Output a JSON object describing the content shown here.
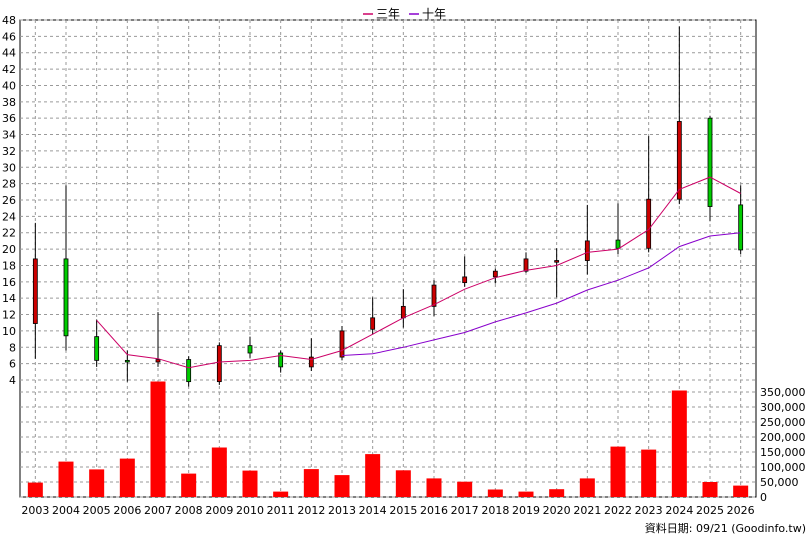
{
  "legend": {
    "items": [
      {
        "label": "三年",
        "color": "#cc0066"
      },
      {
        "label": "十年",
        "color": "#8800cc"
      }
    ]
  },
  "footer": {
    "text": "資料日期: 09/21 (Goodinfo.tw)"
  },
  "colors": {
    "up": "#cc0000",
    "down": "#00cc00",
    "volume": "#ff0000",
    "grid": "#9a9a9a"
  },
  "chart_data": [
    {
      "type": "candlestick",
      "title": "",
      "grid": true,
      "legend_position": "top-center",
      "years": [
        "2003",
        "2004",
        "2005",
        "2006",
        "2007",
        "2008",
        "2009",
        "2010",
        "2011",
        "2012",
        "2013",
        "2014",
        "2015",
        "2016",
        "2017",
        "2018",
        "2019",
        "2020",
        "2021",
        "2022",
        "2023",
        "2024",
        "2025",
        "2026"
      ],
      "ylim": [
        4,
        48
      ],
      "y_ticks": [
        4,
        6,
        8,
        10,
        12,
        14,
        16,
        18,
        20,
        22,
        24,
        26,
        28,
        30,
        32,
        34,
        36,
        38,
        40,
        42,
        44,
        46,
        48
      ],
      "candles": [
        {
          "year": "2003",
          "open": 10.9,
          "high": 23.2,
          "low": 6.6,
          "close": 18.8
        },
        {
          "year": "2004",
          "open": 18.8,
          "high": 27.8,
          "low": 7.6,
          "close": 9.4
        },
        {
          "year": "2005",
          "open": 9.3,
          "high": 11.4,
          "low": 5.6,
          "close": 6.4
        },
        {
          "year": "2006",
          "open": 6.4,
          "high": 7.6,
          "low": 3.8,
          "close": 6.2
        },
        {
          "year": "2007",
          "open": 6.2,
          "high": 12.3,
          "low": 5.6,
          "close": 6.5
        },
        {
          "year": "2008",
          "open": 6.5,
          "high": 6.9,
          "low": 3.2,
          "close": 3.8
        },
        {
          "year": "2009",
          "open": 3.8,
          "high": 8.6,
          "low": 3.4,
          "close": 8.2
        },
        {
          "year": "2010",
          "open": 8.2,
          "high": 9.3,
          "low": 6.7,
          "close": 7.3
        },
        {
          "year": "2011",
          "open": 7.3,
          "high": 7.6,
          "low": 4.9,
          "close": 5.6
        },
        {
          "year": "2012",
          "open": 5.6,
          "high": 9.1,
          "low": 5.1,
          "close": 6.8
        },
        {
          "year": "2013",
          "open": 6.8,
          "high": 10.6,
          "low": 6.4,
          "close": 10.0
        },
        {
          "year": "2014",
          "open": 10.2,
          "high": 14.1,
          "low": 9.6,
          "close": 11.6
        },
        {
          "year": "2015",
          "open": 11.6,
          "high": 15.1,
          "low": 10.4,
          "close": 13.0
        },
        {
          "year": "2016",
          "open": 13.0,
          "high": 16.2,
          "low": 11.8,
          "close": 15.6
        },
        {
          "year": "2017",
          "open": 15.9,
          "high": 19.1,
          "low": 15.4,
          "close": 16.6
        },
        {
          "year": "2018",
          "open": 16.6,
          "high": 17.6,
          "low": 15.8,
          "close": 17.3
        },
        {
          "year": "2019",
          "open": 17.3,
          "high": 19.6,
          "low": 17.1,
          "close": 18.8
        },
        {
          "year": "2020",
          "open": 18.4,
          "high": 20.1,
          "low": 14.1,
          "close": 18.6
        },
        {
          "year": "2021",
          "open": 18.6,
          "high": 25.4,
          "low": 16.9,
          "close": 21.0
        },
        {
          "year": "2022",
          "open": 21.1,
          "high": 25.6,
          "low": 19.4,
          "close": 20.1
        },
        {
          "year": "2023",
          "open": 20.1,
          "high": 33.8,
          "low": 19.6,
          "close": 26.1
        },
        {
          "year": "2024",
          "open": 26.1,
          "high": 47.2,
          "low": 25.5,
          "close": 35.6
        },
        {
          "year": "2025",
          "open": 36.0,
          "high": 36.3,
          "low": 23.4,
          "close": 25.2
        },
        {
          "year": "2026",
          "open": 25.4,
          "high": 27.8,
          "low": 19.4,
          "close": 19.9
        }
      ],
      "series": [
        {
          "name": "三年",
          "years": [
            "2005",
            "2006",
            "2007",
            "2008",
            "2009",
            "2010",
            "2011",
            "2012",
            "2013",
            "2014",
            "2015",
            "2016",
            "2017",
            "2018",
            "2019",
            "2020",
            "2021",
            "2022",
            "2023",
            "2024",
            "2025",
            "2026"
          ],
          "values": [
            11.3,
            7.1,
            6.6,
            5.5,
            6.2,
            6.4,
            7.0,
            6.5,
            7.6,
            9.6,
            11.6,
            13.2,
            15.1,
            16.5,
            17.4,
            18.0,
            19.6,
            20.0,
            22.4,
            27.3,
            28.8,
            26.8
          ]
        },
        {
          "name": "十年",
          "years": [
            "2013",
            "2014",
            "2015",
            "2016",
            "2017",
            "2018",
            "2019",
            "2020",
            "2021",
            "2022",
            "2023",
            "2024",
            "2025",
            "2026"
          ],
          "values": [
            7.0,
            7.2,
            8.0,
            8.9,
            9.8,
            11.1,
            12.2,
            13.4,
            15.0,
            16.2,
            17.7,
            20.3,
            21.6,
            22.0
          ]
        }
      ]
    },
    {
      "type": "bar",
      "categories": [
        "2003",
        "2004",
        "2005",
        "2006",
        "2007",
        "2008",
        "2009",
        "2010",
        "2011",
        "2012",
        "2013",
        "2014",
        "2015",
        "2016",
        "2017",
        "2018",
        "2019",
        "2020",
        "2021",
        "2022",
        "2023",
        "2024",
        "2025",
        "2026"
      ],
      "values": [
        48000,
        118000,
        92000,
        128000,
        385000,
        78000,
        165000,
        88000,
        18000,
        93000,
        73000,
        143000,
        89000,
        62000,
        51000,
        25000,
        18000,
        26000,
        62000,
        168000,
        158000,
        355000,
        50000,
        38000
      ],
      "ylim": [
        0,
        390000
      ],
      "y_ticks": [
        "0",
        "50,000",
        "100,000",
        "150,000",
        "200,000",
        "250,000",
        "300,000",
        "350,000"
      ]
    }
  ]
}
